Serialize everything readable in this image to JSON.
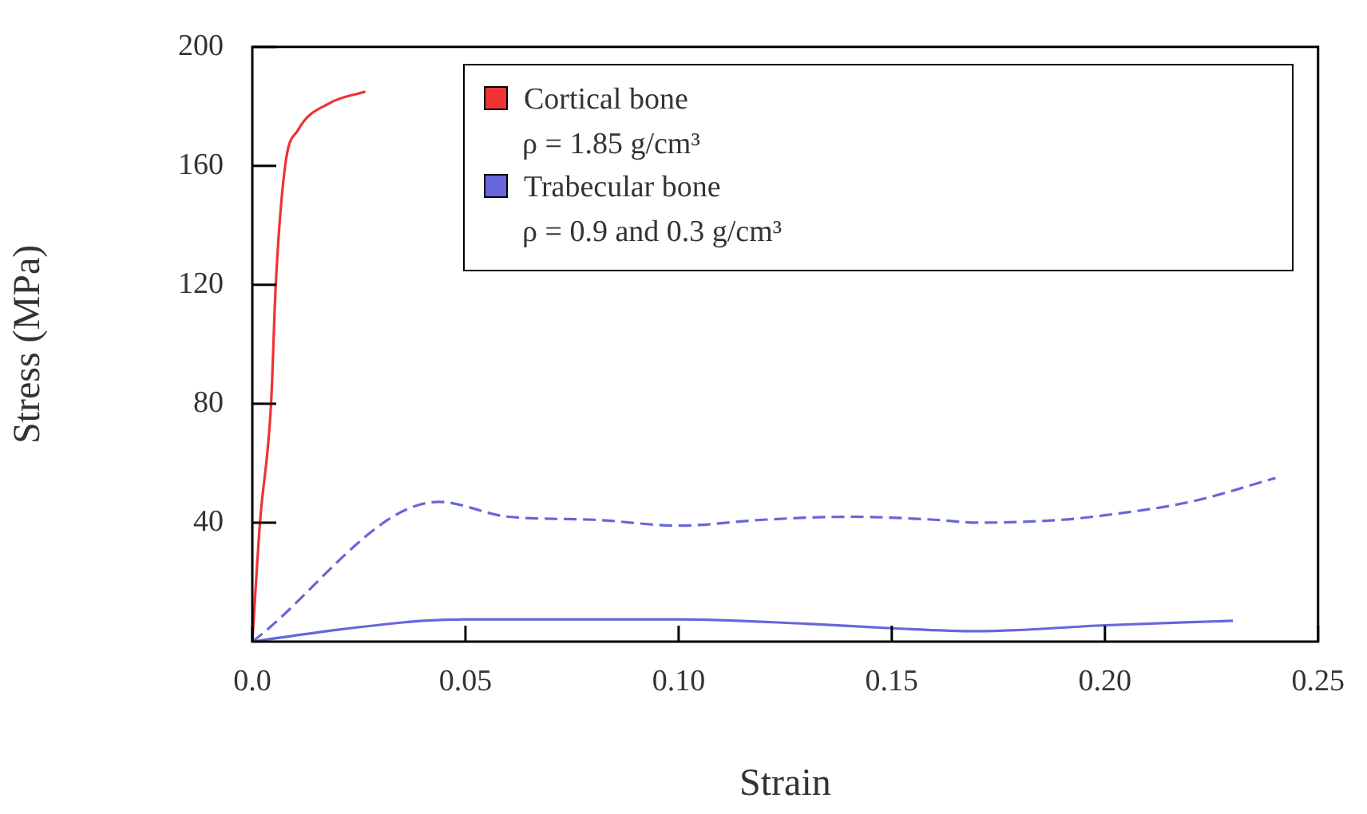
{
  "chart_data": {
    "type": "line",
    "xlabel": "Strain",
    "ylabel": "Stress (MPa)",
    "xlim": [
      0,
      0.25
    ],
    "ylim": [
      0,
      200
    ],
    "xticks": [
      {
        "value": 0,
        "label": "0.0"
      },
      {
        "value": 0.05,
        "label": "0.05"
      },
      {
        "value": 0.1,
        "label": "0.10"
      },
      {
        "value": 0.15,
        "label": "0.15"
      },
      {
        "value": 0.2,
        "label": "0.20"
      },
      {
        "value": 0.25,
        "label": "0.25"
      }
    ],
    "yticks": [
      40,
      80,
      120,
      160,
      200
    ],
    "grid": false,
    "legend": "top",
    "marker": "none",
    "annotations": [
      "ρ = 1.85 g/cm³",
      "ρ = 0.9 and 0.3 g/cm³"
    ],
    "series": [
      {
        "name": "Cortical bone",
        "color": "#ee3333",
        "line_style": "solid",
        "x": [
          0,
          0.0018,
          0.0044,
          0.0055,
          0.0077,
          0.0107,
          0.018,
          0.0265
        ],
        "values": [
          0,
          40,
          80,
          120,
          160,
          172,
          181,
          185
        ]
      },
      {
        "name": "Trabecular bone",
        "color": "#6666dd",
        "line_style": "dashed",
        "x": [
          0,
          0.0437,
          0.06,
          0.08,
          0.1,
          0.12,
          0.14,
          0.16,
          0.17,
          0.19,
          0.2,
          0.22,
          0.24
        ],
        "values": [
          0,
          47,
          42,
          41,
          39,
          41,
          42,
          41,
          40,
          41,
          42.5,
          47,
          55
        ]
      },
      {
        "color": "#6666dd",
        "line_style": "solid",
        "x": [
          0,
          0.02,
          0.04,
          0.05,
          0.1,
          0.13,
          0.15,
          0.17,
          0.2,
          0.23
        ],
        "values": [
          0,
          4,
          7,
          7.5,
          7.5,
          6,
          4.5,
          3.5,
          5.5,
          7
        ]
      }
    ]
  }
}
